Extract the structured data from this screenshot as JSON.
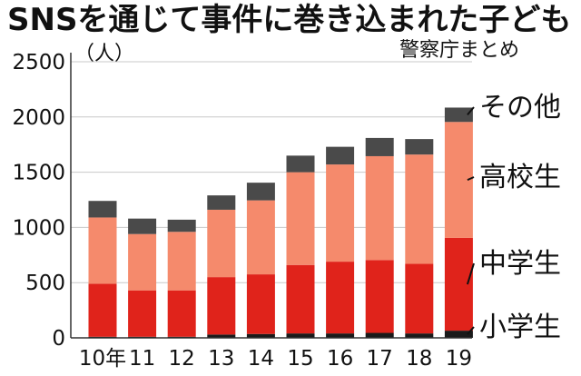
{
  "title": "SNSを通じて事件に巻き込まれた子ども",
  "source": "警察庁まとめ",
  "colors": {
    "小学生": "#1a1a1a",
    "中学生": "#e0231b",
    "高校生": "#f58a6c",
    "その他": "#4a4a4a",
    "grid": "#c8c8c8",
    "axis": "#333333"
  },
  "chart_data": {
    "type": "bar",
    "stacked": true,
    "categories": [
      "10年",
      "11",
      "12",
      "13",
      "14",
      "15",
      "16",
      "17",
      "18",
      "19"
    ],
    "ylabel": "（人）",
    "ylim": [
      0,
      2500
    ],
    "yticks": [
      "0",
      "500",
      "1000",
      "1500",
      "2000",
      "2500"
    ],
    "grid": true,
    "legend_placement": "right, labels at segment levels",
    "series": [
      {
        "name": "小学生",
        "values": [
          10,
          10,
          10,
          30,
          35,
          40,
          40,
          45,
          40,
          65
        ]
      },
      {
        "name": "中学生",
        "values": [
          480,
          420,
          420,
          520,
          540,
          620,
          650,
          660,
          630,
          840
        ]
      },
      {
        "name": "高校生",
        "values": [
          600,
          510,
          530,
          610,
          670,
          840,
          880,
          940,
          990,
          1050
        ]
      },
      {
        "name": "その他",
        "values": [
          150,
          140,
          110,
          130,
          160,
          150,
          160,
          165,
          140,
          130
        ]
      }
    ]
  }
}
